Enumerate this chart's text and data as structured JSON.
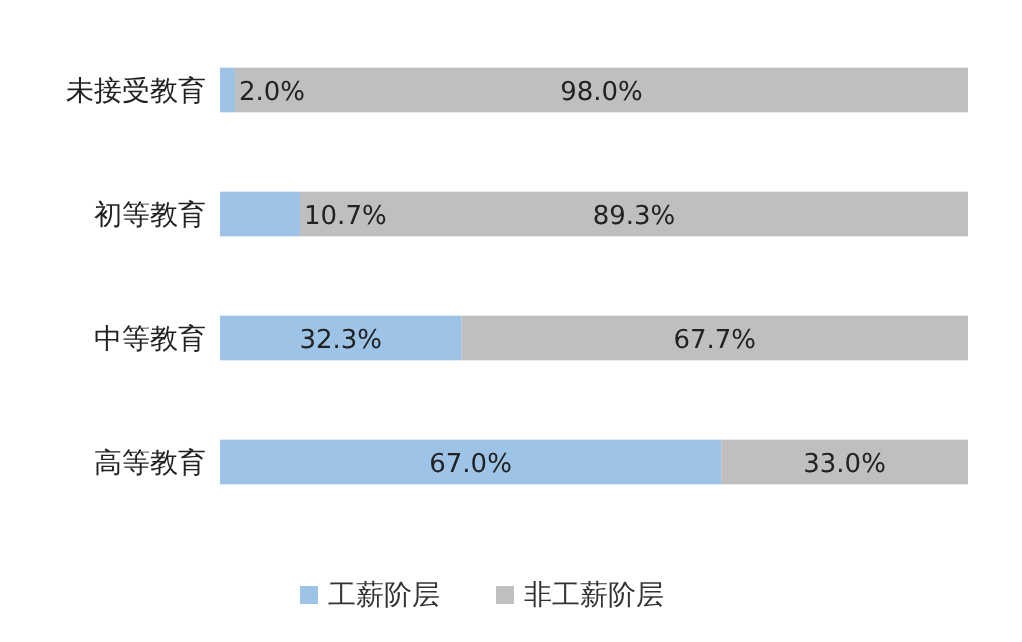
{
  "chart_data": {
    "type": "bar",
    "orientation": "horizontal",
    "stacked": true,
    "legend": "bottom",
    "categories": [
      "未接受教育",
      "初等教育",
      "中等教育",
      "高等教育"
    ],
    "series": [
      {
        "name": "工薪阶层",
        "color": "#9dc3e6",
        "values": [
          2.0,
          10.7,
          32.3,
          67.0
        ],
        "value_labels": [
          "2.0%",
          "10.7%",
          "32.3%",
          "67.0%"
        ]
      },
      {
        "name": "非工薪阶层",
        "color": "#bfbfbf",
        "values": [
          98.0,
          89.3,
          67.7,
          33.0
        ],
        "value_labels": [
          "98.0%",
          "89.3%",
          "67.7%",
          "33.0%"
        ]
      }
    ]
  }
}
